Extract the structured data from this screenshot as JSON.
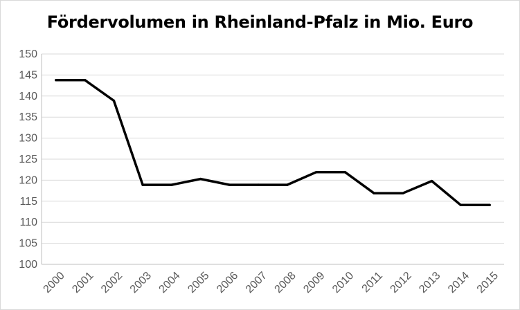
{
  "chart_data": {
    "type": "line",
    "title": "Fördervolumen in Rheinland-Pfalz in Mio. Euro",
    "xlabel": "",
    "ylabel": "",
    "categories": [
      "2000",
      "2001",
      "2002",
      "2003",
      "2004",
      "2005",
      "2006",
      "2007",
      "2008",
      "2009",
      "2010",
      "2011",
      "2012",
      "2013",
      "2014",
      "2015"
    ],
    "series": [
      {
        "values": [
          143.8,
          143.8,
          138.9,
          118.9,
          118.9,
          120.3,
          118.9,
          118.9,
          118.9,
          121.9,
          121.9,
          116.9,
          116.9,
          119.8,
          114.1,
          114.1
        ]
      }
    ],
    "ylim": [
      100,
      150
    ],
    "yticks": [
      "100",
      "105",
      "110",
      "115",
      "120",
      "125",
      "130",
      "135",
      "140",
      "145",
      "150"
    ],
    "grid": true,
    "legend": "none",
    "line_color": "#000000",
    "grid_color": "#d9d9d9"
  }
}
